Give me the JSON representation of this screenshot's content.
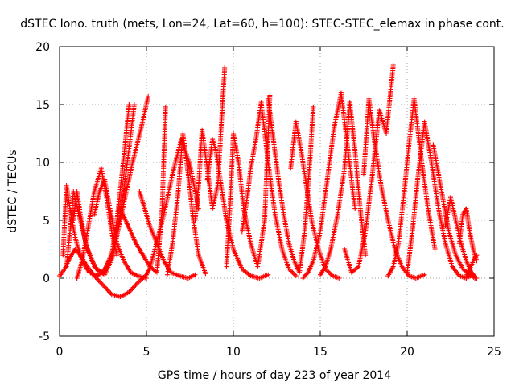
{
  "chart_data": {
    "type": "scatter",
    "title": "dSTEC Iono. truth (mets, Lon=24, Lat=60, h=100): STEC-STEC_elemax in phase cont.",
    "xlabel": "GPS time / hours of day 223 of year 2014",
    "ylabel": "dSTEC  / TECUs",
    "xlim": [
      0,
      25
    ],
    "ylim": [
      -5,
      20
    ],
    "xticks": [
      0,
      5,
      10,
      15,
      20,
      25
    ],
    "yticks": [
      -5,
      0,
      5,
      10,
      15,
      20
    ],
    "grid": true,
    "legend": "none",
    "marker": "plus",
    "color": "#ff0000",
    "series": [
      {
        "x": [
          0.0,
          0.3,
          0.6,
          0.9,
          1.2,
          1.6,
          2.0,
          2.5,
          3.0,
          3.5,
          4.0,
          4.5,
          5.0,
          5.2,
          5.5,
          6.0,
          6.5,
          7.0,
          7.5,
          8.0
        ],
        "y": [
          0.2,
          0.8,
          1.8,
          2.5,
          2.0,
          1.0,
          0.2,
          -0.6,
          -1.4,
          -1.6,
          -1.2,
          -0.4,
          0.3,
          0.9,
          2.6,
          5.5,
          9.0,
          12.0,
          9.8,
          6.0
        ]
      },
      {
        "x": [
          0.2,
          0.3,
          0.4,
          0.6,
          0.9,
          1.3,
          1.7,
          2.2,
          2.7,
          3.2,
          3.7,
          4.2,
          4.7,
          5.1
        ],
        "y": [
          2.0,
          5.0,
          8.0,
          6.0,
          3.5,
          1.5,
          0.5,
          0.2,
          1.0,
          3.0,
          6.5,
          10.0,
          13.0,
          15.7
        ]
      },
      {
        "x": [
          0.4,
          0.6,
          0.8,
          1.2,
          1.6,
          2.1,
          2.6,
          3.1,
          3.5,
          3.9,
          4.3
        ],
        "y": [
          1.0,
          4.0,
          7.5,
          5.0,
          2.5,
          0.8,
          0.3,
          2.0,
          5.5,
          10.0,
          15.0
        ]
      },
      {
        "x": [
          0.8,
          1.0,
          1.2,
          1.5,
          2.0,
          2.5,
          3.0,
          3.3,
          3.7,
          4.0
        ],
        "y": [
          5.0,
          7.5,
          5.5,
          3.0,
          1.0,
          0.4,
          2.0,
          5.0,
          10.5,
          15.0
        ]
      },
      {
        "x": [
          1.0,
          1.3,
          1.6,
          2.0,
          2.4,
          2.7,
          3.0,
          3.3
        ],
        "y": [
          0.0,
          1.5,
          4.0,
          7.5,
          9.5,
          7.0,
          4.0,
          2.0
        ]
      },
      {
        "x": [
          2.0,
          2.3,
          2.6,
          2.9,
          3.3,
          3.7,
          4.1,
          4.5,
          5.0
        ],
        "y": [
          5.5,
          7.5,
          8.5,
          6.0,
          3.0,
          1.5,
          0.5,
          0.2,
          0.0
        ]
      },
      {
        "x": [
          3.5,
          3.8,
          4.1,
          4.4,
          4.8,
          5.2,
          5.6,
          5.9,
          6.1
        ],
        "y": [
          6.0,
          5.0,
          4.0,
          3.0,
          2.0,
          1.0,
          0.5,
          6.0,
          14.8
        ]
      },
      {
        "x": [
          4.6,
          4.9,
          5.2,
          5.6,
          6.0,
          6.4,
          6.9,
          7.4,
          7.8
        ],
        "y": [
          7.5,
          6.0,
          4.5,
          3.0,
          1.5,
          0.5,
          0.2,
          0.0,
          0.3
        ]
      },
      {
        "x": [
          6.2,
          6.5,
          6.8,
          7.1,
          7.4,
          7.7,
          8.0,
          8.4
        ],
        "y": [
          0.3,
          3.0,
          7.0,
          12.5,
          9.0,
          5.0,
          2.0,
          0.4
        ]
      },
      {
        "x": [
          7.8,
          8.0,
          8.2,
          8.5,
          8.8,
          9.1,
          9.3,
          9.5
        ],
        "y": [
          5.0,
          8.0,
          12.8,
          9.5,
          6.0,
          8.0,
          13.0,
          18.2
        ]
      },
      {
        "x": [
          8.5,
          8.8,
          9.0,
          9.3,
          9.6,
          10.0,
          10.5,
          11.0,
          11.5,
          12.0
        ],
        "y": [
          8.5,
          12.0,
          11.0,
          8.0,
          5.0,
          2.5,
          0.8,
          0.2,
          0.0,
          0.3
        ]
      },
      {
        "x": [
          9.6,
          9.8,
          10.0,
          10.3,
          10.6,
          11.0,
          11.4,
          11.8,
          12.1
        ],
        "y": [
          1.0,
          6.0,
          12.5,
          10.0,
          6.0,
          3.0,
          1.0,
          5.0,
          15.8
        ]
      },
      {
        "x": [
          10.5,
          10.8,
          11.0,
          11.3,
          11.6,
          12.0,
          12.4,
          12.8,
          13.2,
          13.6
        ],
        "y": [
          4.0,
          7.0,
          9.5,
          12.0,
          15.2,
          10.0,
          5.5,
          2.5,
          0.8,
          0.2
        ]
      },
      {
        "x": [
          12.0,
          12.3,
          12.6,
          12.9,
          13.2,
          13.5,
          13.8,
          14.1,
          14.4,
          14.6
        ],
        "y": [
          15.5,
          12.0,
          8.5,
          5.5,
          3.0,
          1.5,
          0.5,
          4.0,
          10.0,
          14.8
        ]
      },
      {
        "x": [
          13.3,
          13.6,
          13.9,
          14.2,
          14.5,
          14.9,
          15.3,
          15.7,
          16.1
        ],
        "y": [
          9.5,
          13.5,
          11.0,
          8.0,
          5.0,
          2.5,
          0.8,
          0.2,
          0.0
        ]
      },
      {
        "x": [
          14.0,
          14.3,
          14.6,
          15.0,
          15.4,
          15.8,
          16.2,
          16.6,
          17.0
        ],
        "y": [
          0.0,
          0.5,
          1.5,
          4.0,
          8.5,
          13.0,
          16.0,
          11.0,
          6.0
        ]
      },
      {
        "x": [
          15.0,
          15.3,
          15.6,
          16.0,
          16.4,
          16.7,
          17.0,
          17.3,
          17.6
        ],
        "y": [
          0.3,
          1.0,
          2.5,
          5.5,
          9.5,
          15.2,
          11.0,
          6.0,
          2.0
        ]
      },
      {
        "x": [
          16.4,
          16.8,
          17.2,
          17.6,
          18.0,
          18.4,
          18.8,
          19.2
        ],
        "y": [
          2.5,
          0.5,
          1.0,
          4.0,
          9.0,
          14.5,
          12.5,
          18.4
        ]
      },
      {
        "x": [
          17.5,
          17.8,
          18.1,
          18.5,
          18.9,
          19.3,
          19.7,
          20.1,
          20.5,
          21.0
        ],
        "y": [
          9.0,
          15.5,
          12.0,
          8.0,
          5.0,
          2.5,
          1.0,
          0.2,
          0.0,
          0.3
        ]
      },
      {
        "x": [
          18.9,
          19.2,
          19.5,
          19.8,
          20.1,
          20.4,
          20.8,
          21.2,
          21.6
        ],
        "y": [
          0.2,
          1.0,
          3.0,
          7.0,
          11.5,
          15.5,
          10.5,
          6.0,
          2.5
        ]
      },
      {
        "x": [
          20.0,
          20.3,
          20.6,
          21.0,
          21.4,
          21.8,
          22.2,
          22.6,
          23.0,
          23.4,
          23.8
        ],
        "y": [
          0.5,
          4.0,
          8.5,
          13.5,
          10.0,
          6.0,
          3.0,
          1.0,
          0.2,
          0.0,
          0.3
        ]
      },
      {
        "x": [
          21.5,
          21.8,
          22.1,
          22.4,
          22.8,
          23.2,
          23.6,
          23.9
        ],
        "y": [
          11.5,
          9.0,
          6.5,
          4.0,
          2.0,
          0.8,
          0.3,
          0.0
        ]
      },
      {
        "x": [
          22.2,
          22.5,
          22.8,
          23.1,
          23.4,
          23.7,
          24.0
        ],
        "y": [
          4.5,
          7.0,
          5.0,
          3.0,
          1.5,
          0.5,
          0.0
        ]
      },
      {
        "x": [
          23.0,
          23.2,
          23.4,
          23.6,
          23.8,
          24.0
        ],
        "y": [
          3.0,
          5.5,
          6.0,
          4.0,
          2.5,
          1.5
        ]
      },
      {
        "x": [
          23.4,
          23.6,
          23.8,
          24.0
        ],
        "y": [
          0.2,
          0.8,
          1.5,
          2.0
        ]
      }
    ]
  }
}
